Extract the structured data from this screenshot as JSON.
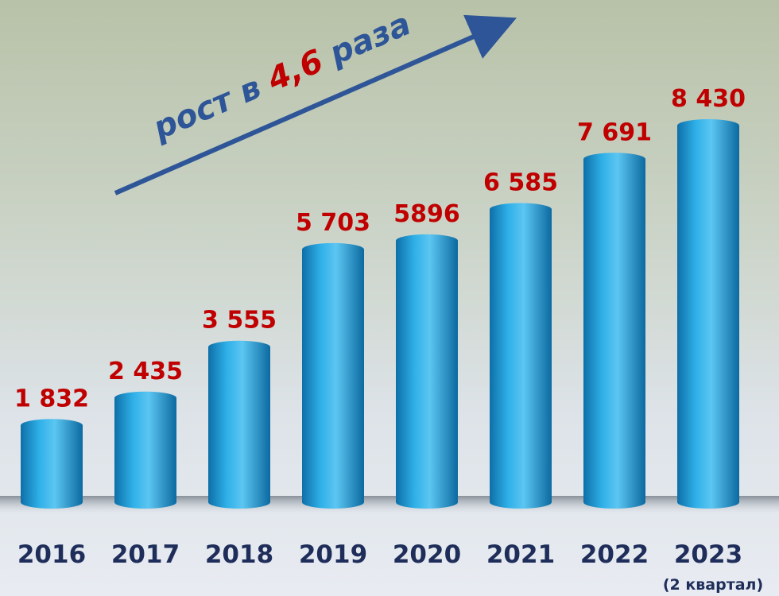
{
  "chart_data": {
    "type": "bar",
    "categories": [
      "2016",
      "2017",
      "2018",
      "2019",
      "2020",
      "2021",
      "2022",
      "2023"
    ],
    "category_note": "(2 квартал)",
    "values": [
      1832,
      2435,
      3555,
      5703,
      5896,
      6585,
      7691,
      8430
    ],
    "value_labels": [
      "1 832",
      "2 435",
      "3 555",
      "5 703",
      "5896",
      "6 585",
      "7 691",
      "8 430"
    ],
    "color": "#1b9ad6",
    "annotation": {
      "parts": [
        "рост в ",
        "4,6",
        " раза"
      ]
    }
  }
}
